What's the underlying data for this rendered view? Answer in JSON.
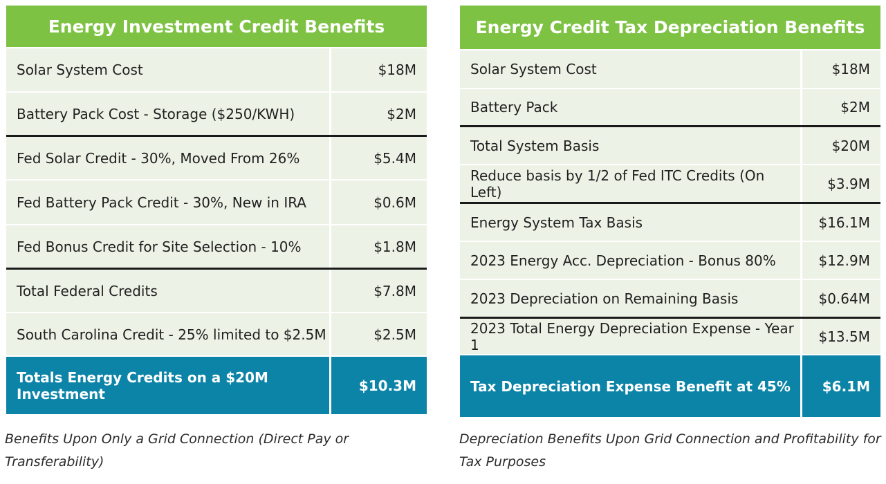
{
  "left": {
    "title": "Energy Investment Credit Benefits",
    "rows": [
      {
        "label": "Solar System Cost",
        "value": "$18M"
      },
      {
        "label": "Battery Pack Cost - Storage ($250/KWH)",
        "value": "$2M"
      },
      {
        "label": "Fed Solar Credit - 30%, Moved From 26%",
        "value": "$5.4M"
      },
      {
        "label": "Fed Battery Pack Credit - 30%, New in IRA",
        "value": "$0.6M"
      },
      {
        "label": "Fed Bonus Credit for Site Selection - 10%",
        "value": "$1.8M"
      },
      {
        "label": "Total Federal Credits",
        "value": "$7.8M"
      },
      {
        "label": "South Carolina Credit - 25% limited to $2.5M",
        "value": "$2.5M"
      }
    ],
    "total": {
      "label": "Totals Energy Credits on a $20M Investment",
      "value": "$10.3M"
    },
    "caption": "Benefits Upon Only a Grid Connection (Direct Pay or Transferability)"
  },
  "right": {
    "title": "Energy Credit Tax Depreciation Benefits",
    "rows": [
      {
        "label": "Solar System Cost",
        "value": "$18M"
      },
      {
        "label": "Battery Pack",
        "value": "$2M"
      },
      {
        "label": "Total System Basis",
        "value": "$20M"
      },
      {
        "label": "Reduce basis by 1/2 of Fed ITC Credits (On Left)",
        "value": "$3.9M"
      },
      {
        "label": "Energy System Tax Basis",
        "value": "$16.1M"
      },
      {
        "label": "2023 Energy Acc. Depreciation - Bonus 80%",
        "value": "$12.9M"
      },
      {
        "label": "2023 Depreciation on Remaining Basis",
        "value": "$0.64M"
      },
      {
        "label": "2023 Total Energy Depreciation Expense - Year 1",
        "value": "$13.5M"
      }
    ],
    "total": {
      "label": "Tax Depreciation Expense Benefit at 45%",
      "value": "$6.1M"
    },
    "caption": "Depreciation Benefits Upon Grid Connection and Profitability for Tax Purposes"
  },
  "colors": {
    "header_green": "#7dc242",
    "total_blue": "#0b84a8",
    "row_bg": "#edf2e6"
  }
}
